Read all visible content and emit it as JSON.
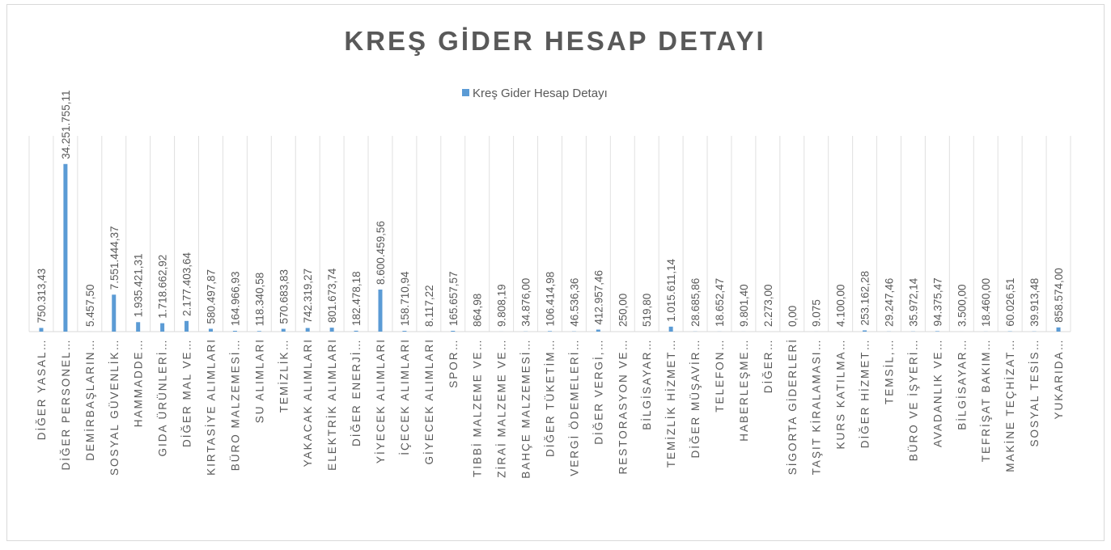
{
  "chart_data": {
    "type": "bar",
    "title": "KREŞ GİDER HESAP DETAYI",
    "categories": [
      "DİĞER YASAL…",
      "DİĞER PERSONEL…",
      "DEMİRBAŞLARIN…",
      "SOSYAL GÜVENLİK…",
      "HAMMADDE…",
      "GIDA ÜRÜNLERİ…",
      "DİĞER MAL VE…",
      "KIRTASİYE ALIMLARI",
      "BÜRO MALZEMESİ…",
      "SU ALIMLARI",
      "TEMİZLİK…",
      "YAKACAK ALIMLARI",
      "ELEKTRİK ALIMLARI",
      "DİĞER ENERJİ…",
      "YİYECEK ALIMLARI",
      "İÇECEK ALIMLARI",
      "GİYECEK ALIMLARI",
      "SPOR…",
      "TIBBİ MALZEME VE…",
      "ZİRAİ MALZEME VE…",
      "BAHÇE MALZEMESİ…",
      "DİĞER TÜKETİM…",
      "VERGİ ÖDEMELERİ…",
      "DİĞER VERGİ,…",
      "RESTORASYON VE…",
      "BİLGİSAYAR…",
      "TEMİZLİK HİZMET…",
      "DİĞER MÜŞAVİR…",
      "TELEFON…",
      "HABERLEŞME…",
      "DİĞER…",
      "SİGORTA GİDERLERİ",
      "TAŞIT KİRALAMASI…",
      "KURS KATILMA…",
      "DİĞER HİZMET…",
      "TEMSİL,…",
      "BÜRO VE İŞYERİ…",
      "AVADANLIK VE…",
      "BİLGİSAYAR…",
      "TEFRİŞAT BAKIM…",
      "MAKİNE TEÇHİZAT…",
      "SOSYAL TESİS…",
      "YUKARIDA…"
    ],
    "series": [
      {
        "name": "Kreş Gider Hesap Detayı",
        "color": "#5b9bd5",
        "values": [
          750313.43,
          34251755.11,
          5457.5,
          7551444.37,
          1935421.31,
          1718662.92,
          2177403.64,
          580497.87,
          164966.93,
          118340.58,
          570683.83,
          742319.27,
          801673.74,
          182478.18,
          8600459.56,
          158710.94,
          8117.22,
          165657.57,
          864.98,
          9808.19,
          34876.0,
          106414.98,
          46536.36,
          412957.46,
          250.0,
          519.8,
          1015611.14,
          28685.86,
          18652.47,
          9801.4,
          2273.0,
          0,
          9075,
          4100.0,
          253162.28,
          29247.46,
          35972.14,
          94375.47,
          3500.0,
          18460.0,
          60026.51,
          39913.48,
          858574.0
        ],
        "value_labels": [
          "750.313,43",
          "34.251.755,11",
          "5.457,50",
          "7.551.444,37",
          "1.935.421,31",
          "1.718.662,92",
          "2.177.403,64",
          "580.497,87",
          "164.966,93",
          "118.340,58",
          "570.683,83",
          "742.319,27",
          "801.673,74",
          "182.478,18",
          "8.600.459,56",
          "158.710,94",
          "8.117,22",
          "165.657,57",
          "864,98",
          "9.808,19",
          "34.876,00",
          "106.414,98",
          "46.536,36",
          "412.957,46",
          "250,00",
          "519,80",
          "1.015.611,14",
          "28.685,86",
          "18.652,47",
          "9.801,40",
          "2.273,00",
          "0,00",
          "9.075",
          "4.100,00",
          "253.162,28",
          "29.247,46",
          "35.972,14",
          "94.375,47",
          "3.500,00",
          "18.460,00",
          "60.026,51",
          "39.913,48",
          "858.574,00"
        ]
      }
    ],
    "ylim": [
      0,
      40000000
    ],
    "legend": "top"
  }
}
